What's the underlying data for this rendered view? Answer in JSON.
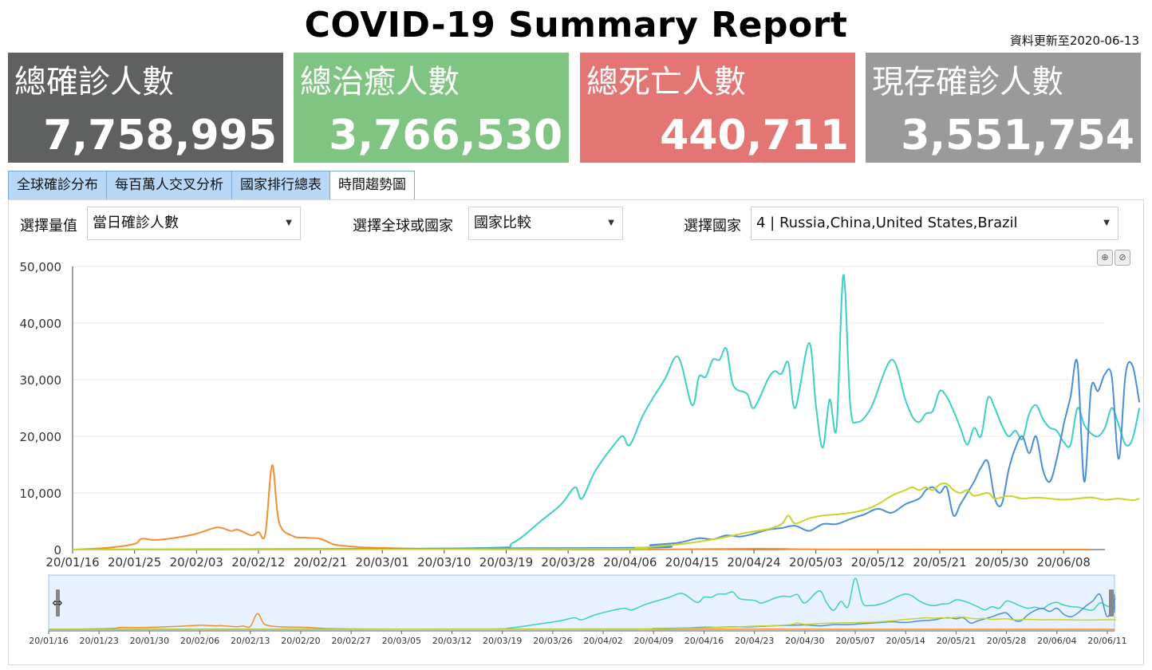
{
  "header": {
    "title": "COVID-19 Summary Report",
    "updated": "資料更新至2020-06-13"
  },
  "cards": [
    {
      "label": "總確診人數",
      "value": "7,758,995",
      "color": "#5f6060"
    },
    {
      "label": "總治癒人數",
      "value": "3,766,530",
      "color": "#80c482"
    },
    {
      "label": "總死亡人數",
      "value": "440,711",
      "color": "#e37573"
    },
    {
      "label": "現存確診人數",
      "value": "3,551,754",
      "color": "#9a9a9a"
    }
  ],
  "tabs": [
    {
      "label": "全球確診分布",
      "active": false
    },
    {
      "label": "每百萬人交叉分析",
      "active": false
    },
    {
      "label": "國家排行總表",
      "active": false
    },
    {
      "label": "時間趨勢圖",
      "active": true
    }
  ],
  "controls": {
    "measure_label": "選擇量值",
    "measure_value": "當日確診人數",
    "scope_label": "選擇全球或國家",
    "scope_value": "國家比較",
    "country_label": "選擇國家",
    "country_value": "4 | Russia,China,United States,Brazil"
  },
  "icons": {
    "dropdown": "caret-down-icon",
    "zoom_in": "zoom-in-icon",
    "zoom_reset": "zoom-reset-icon",
    "slider_handle": "resize-horizontal-icon"
  },
  "chart_data": {
    "type": "line",
    "ylim": [
      0,
      50000
    ],
    "yticks": [
      "0",
      "10,000",
      "20,000",
      "30,000",
      "40,000",
      "50,000"
    ],
    "xticks_main": [
      "20/01/16",
      "20/01/25",
      "20/02/03",
      "20/02/12",
      "20/02/21",
      "20/03/01",
      "20/03/10",
      "20/03/19",
      "20/03/28",
      "20/04/06",
      "20/04/15",
      "20/04/24",
      "20/05/03",
      "20/05/12",
      "20/05/21",
      "20/05/30",
      "20/06/08"
    ],
    "xticks_nav": [
      "20/01/16",
      "20/01/23",
      "20/01/30",
      "20/02/06",
      "20/02/13",
      "20/02/20",
      "20/02/27",
      "20/03/05",
      "20/03/12",
      "20/03/19",
      "20/03/26",
      "20/04/02",
      "20/04/09",
      "20/04/16",
      "20/04/23",
      "20/04/30",
      "20/05/07",
      "20/05/14",
      "20/05/21",
      "20/05/28",
      "20/06/04",
      "20/06/11"
    ],
    "x_start": "2020-01-16",
    "x_end": "2020-06-12",
    "series": [
      {
        "color": "#f28f33",
        "points": [
          [
            0,
            0
          ],
          [
            5,
            300
          ],
          [
            9,
            1000
          ],
          [
            10,
            1900
          ],
          [
            12,
            1700
          ],
          [
            15,
            2100
          ],
          [
            18,
            2800
          ],
          [
            21,
            3900
          ],
          [
            23,
            3300
          ],
          [
            24,
            3500
          ],
          [
            26,
            2500
          ],
          [
            27,
            3100
          ],
          [
            28,
            2700
          ],
          [
            29,
            14900
          ],
          [
            30,
            4800
          ],
          [
            32,
            2400
          ],
          [
            34,
            2100
          ],
          [
            36,
            1900
          ],
          [
            38,
            900
          ],
          [
            40,
            600
          ],
          [
            42,
            400
          ],
          [
            45,
            300
          ],
          [
            48,
            200
          ],
          [
            52,
            100
          ],
          [
            60,
            50
          ],
          [
            80,
            0
          ],
          [
            100,
            150
          ],
          [
            110,
            30
          ],
          [
            148,
            0
          ]
        ]
      },
      {
        "color": "#3ecfc4",
        "points": [
          [
            0,
            0
          ],
          [
            30,
            0
          ],
          [
            60,
            300
          ],
          [
            64,
            1200
          ],
          [
            68,
            5000
          ],
          [
            71,
            8000
          ],
          [
            73,
            11000
          ],
          [
            74,
            9000
          ],
          [
            76,
            14000
          ],
          [
            79,
            19000
          ],
          [
            80,
            20000
          ],
          [
            81,
            18500
          ],
          [
            83,
            24000
          ],
          [
            86,
            30000
          ],
          [
            88,
            34000
          ],
          [
            90,
            25500
          ],
          [
            91,
            30500
          ],
          [
            92,
            30500
          ],
          [
            93,
            33500
          ],
          [
            94,
            33500
          ],
          [
            95,
            35500
          ],
          [
            96,
            29000
          ],
          [
            98,
            27500
          ],
          [
            99,
            25000
          ],
          [
            101,
            30000
          ],
          [
            102,
            31500
          ],
          [
            103,
            31000
          ],
          [
            104,
            33000
          ],
          [
            105,
            25000
          ],
          [
            107,
            36500
          ],
          [
            108,
            25500
          ],
          [
            109,
            18000
          ],
          [
            110,
            26500
          ],
          [
            111,
            21500
          ],
          [
            112,
            48500
          ],
          [
            113,
            25500
          ],
          [
            114,
            22500
          ],
          [
            116,
            25000
          ],
          [
            119,
            33500
          ],
          [
            121,
            26500
          ],
          [
            122,
            23500
          ],
          [
            123,
            22500
          ],
          [
            124,
            24000
          ],
          [
            125,
            24500
          ],
          [
            126,
            28000
          ],
          [
            127,
            27000
          ],
          [
            128,
            24500
          ],
          [
            129,
            21500
          ],
          [
            130,
            18500
          ],
          [
            131,
            21500
          ],
          [
            132,
            20000
          ],
          [
            133,
            26800
          ],
          [
            134,
            25000
          ],
          [
            135,
            22000
          ],
          [
            136,
            20000
          ],
          [
            137,
            21000
          ],
          [
            138,
            19500
          ],
          [
            139,
            24000
          ],
          [
            140,
            25500
          ],
          [
            141,
            23000
          ],
          [
            142,
            21500
          ],
          [
            143,
            21000
          ],
          [
            144,
            19000
          ],
          [
            145,
            18500
          ],
          [
            146,
            25000
          ],
          [
            147,
            22000
          ],
          [
            148,
            20500
          ],
          [
            149,
            20000
          ],
          [
            150,
            21500
          ],
          [
            151,
            25000
          ],
          [
            152,
            22000
          ],
          [
            153,
            18500
          ],
          [
            154,
            19500
          ],
          [
            155,
            25000
          ]
        ]
      },
      {
        "color": "#4a8fd6",
        "points": [
          [
            0,
            0
          ],
          [
            80,
            300
          ],
          [
            84,
            800
          ],
          [
            88,
            1200
          ],
          [
            91,
            2000
          ],
          [
            93,
            1800
          ],
          [
            95,
            2500
          ],
          [
            97,
            2300
          ],
          [
            99,
            2800
          ],
          [
            101,
            3500
          ],
          [
            103,
            3800
          ],
          [
            105,
            4200
          ],
          [
            107,
            3300
          ],
          [
            109,
            4500
          ],
          [
            111,
            4500
          ],
          [
            113,
            5400
          ],
          [
            115,
            6200
          ],
          [
            117,
            7200
          ],
          [
            119,
            6500
          ],
          [
            121,
            8000
          ],
          [
            123,
            9000
          ],
          [
            124,
            10500
          ],
          [
            125,
            11000
          ],
          [
            126,
            10000
          ],
          [
            127,
            11000
          ],
          [
            128,
            6000
          ],
          [
            129,
            8000
          ],
          [
            130,
            10000
          ],
          [
            131,
            12000
          ],
          [
            132,
            14500
          ],
          [
            133,
            15500
          ],
          [
            134,
            9000
          ],
          [
            135,
            8000
          ],
          [
            136,
            14000
          ],
          [
            137,
            18000
          ],
          [
            138,
            20000
          ],
          [
            139,
            17000
          ],
          [
            140,
            20000
          ],
          [
            141,
            14000
          ],
          [
            142,
            12000
          ],
          [
            143,
            16000
          ],
          [
            144,
            22000
          ],
          [
            145,
            27000
          ],
          [
            146,
            33000
          ],
          [
            147,
            12000
          ],
          [
            148,
            28500
          ],
          [
            149,
            28000
          ],
          [
            150,
            31000
          ],
          [
            151,
            30500
          ],
          [
            152,
            16000
          ],
          [
            153,
            31000
          ],
          [
            154,
            32500
          ],
          [
            155,
            26000
          ]
        ]
      },
      {
        "color": "#c9d42a",
        "points": [
          [
            0,
            0
          ],
          [
            76,
            100
          ],
          [
            82,
            300
          ],
          [
            86,
            700
          ],
          [
            90,
            1200
          ],
          [
            94,
            2000
          ],
          [
            98,
            3000
          ],
          [
            101,
            3600
          ],
          [
            103,
            4500
          ],
          [
            104,
            6000
          ],
          [
            105,
            4600
          ],
          [
            107,
            5500
          ],
          [
            109,
            6000
          ],
          [
            111,
            6200
          ],
          [
            113,
            6500
          ],
          [
            115,
            7000
          ],
          [
            117,
            8000
          ],
          [
            119,
            9500
          ],
          [
            121,
            10500
          ],
          [
            122,
            11000
          ],
          [
            123,
            10500
          ],
          [
            124,
            11000
          ],
          [
            125,
            10500
          ],
          [
            126,
            11500
          ],
          [
            127,
            11600
          ],
          [
            128,
            10500
          ],
          [
            129,
            10000
          ],
          [
            130,
            10500
          ],
          [
            131,
            9500
          ],
          [
            133,
            10000
          ],
          [
            134,
            9000
          ],
          [
            136,
            9500
          ],
          [
            138,
            9000
          ],
          [
            140,
            9200
          ],
          [
            142,
            9000
          ],
          [
            144,
            8800
          ],
          [
            146,
            9000
          ],
          [
            148,
            9200
          ],
          [
            150,
            8800
          ],
          [
            152,
            9000
          ],
          [
            154,
            8700
          ],
          [
            155,
            9000
          ]
        ]
      }
    ]
  }
}
